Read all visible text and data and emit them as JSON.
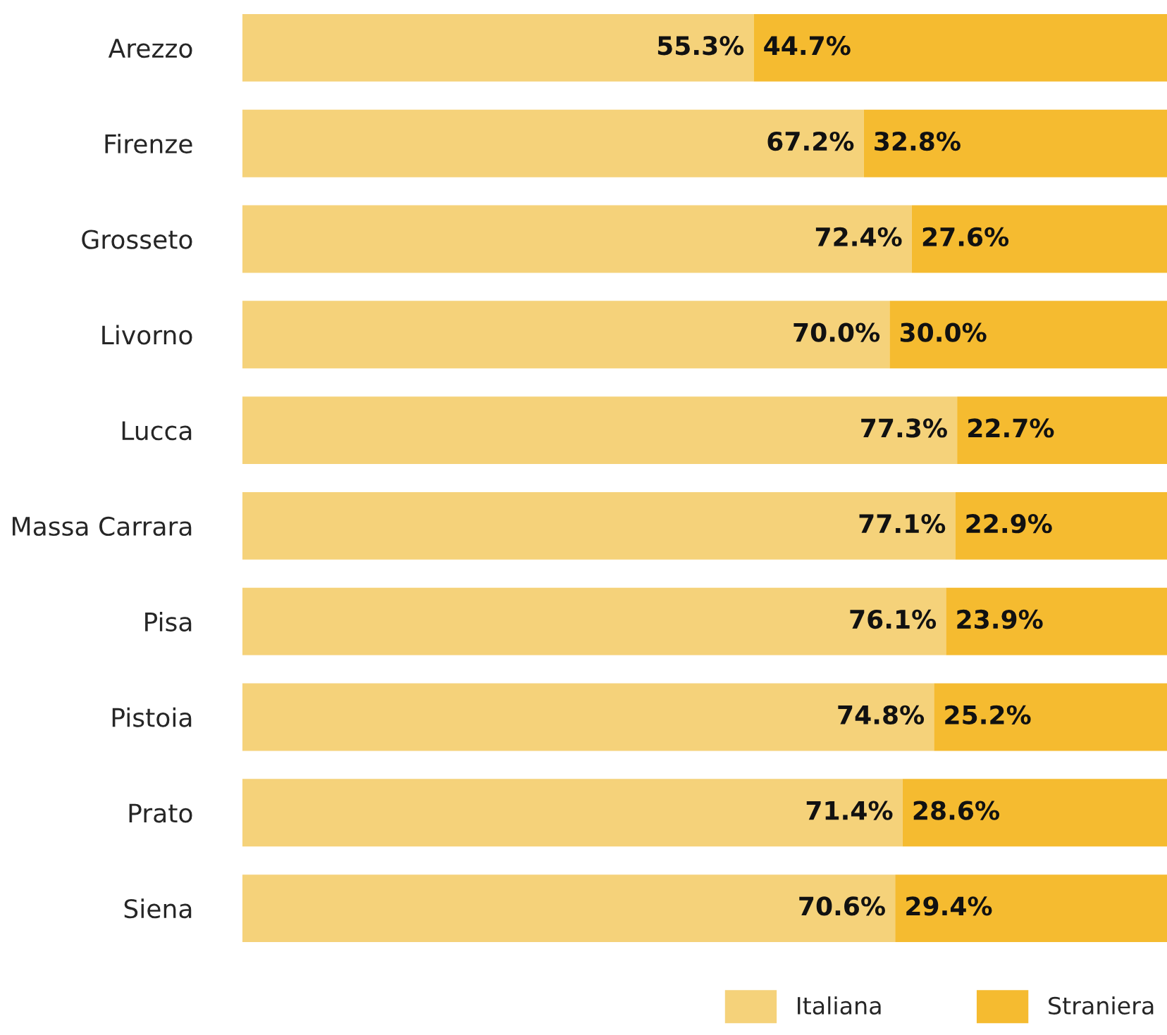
{
  "chart_data": {
    "type": "bar",
    "orientation": "horizontal",
    "stacked": true,
    "categories": [
      "Arezzo",
      "Firenze",
      "Grosseto",
      "Livorno",
      "Lucca",
      "Massa Carrara",
      "Pisa",
      "Pistoia",
      "Prato",
      "Siena"
    ],
    "series": [
      {
        "name": "Italiana",
        "color": "#f5d27a",
        "values": [
          55.3,
          67.2,
          72.4,
          70.0,
          77.3,
          77.1,
          76.1,
          74.8,
          71.4,
          70.6
        ],
        "value_labels": [
          "55.3%",
          "67.2%",
          "72.4%",
          "70.0%",
          "77.3%",
          "77.1%",
          "76.1%",
          "74.8%",
          "71.4%",
          "70.6%"
        ]
      },
      {
        "name": "Straniera",
        "color": "#f5bb30",
        "values": [
          44.7,
          32.8,
          27.6,
          30.0,
          22.7,
          22.9,
          23.9,
          25.2,
          28.6,
          29.4
        ],
        "value_labels": [
          "44.7%",
          "32.8%",
          "27.6%",
          "30.0%",
          "22.7%",
          "22.9%",
          "23.9%",
          "25.2%",
          "28.6%",
          "29.4%"
        ]
      }
    ],
    "xlim": [
      0,
      100
    ],
    "tick_labels": "y",
    "legend": "bottom right",
    "grid": false
  }
}
